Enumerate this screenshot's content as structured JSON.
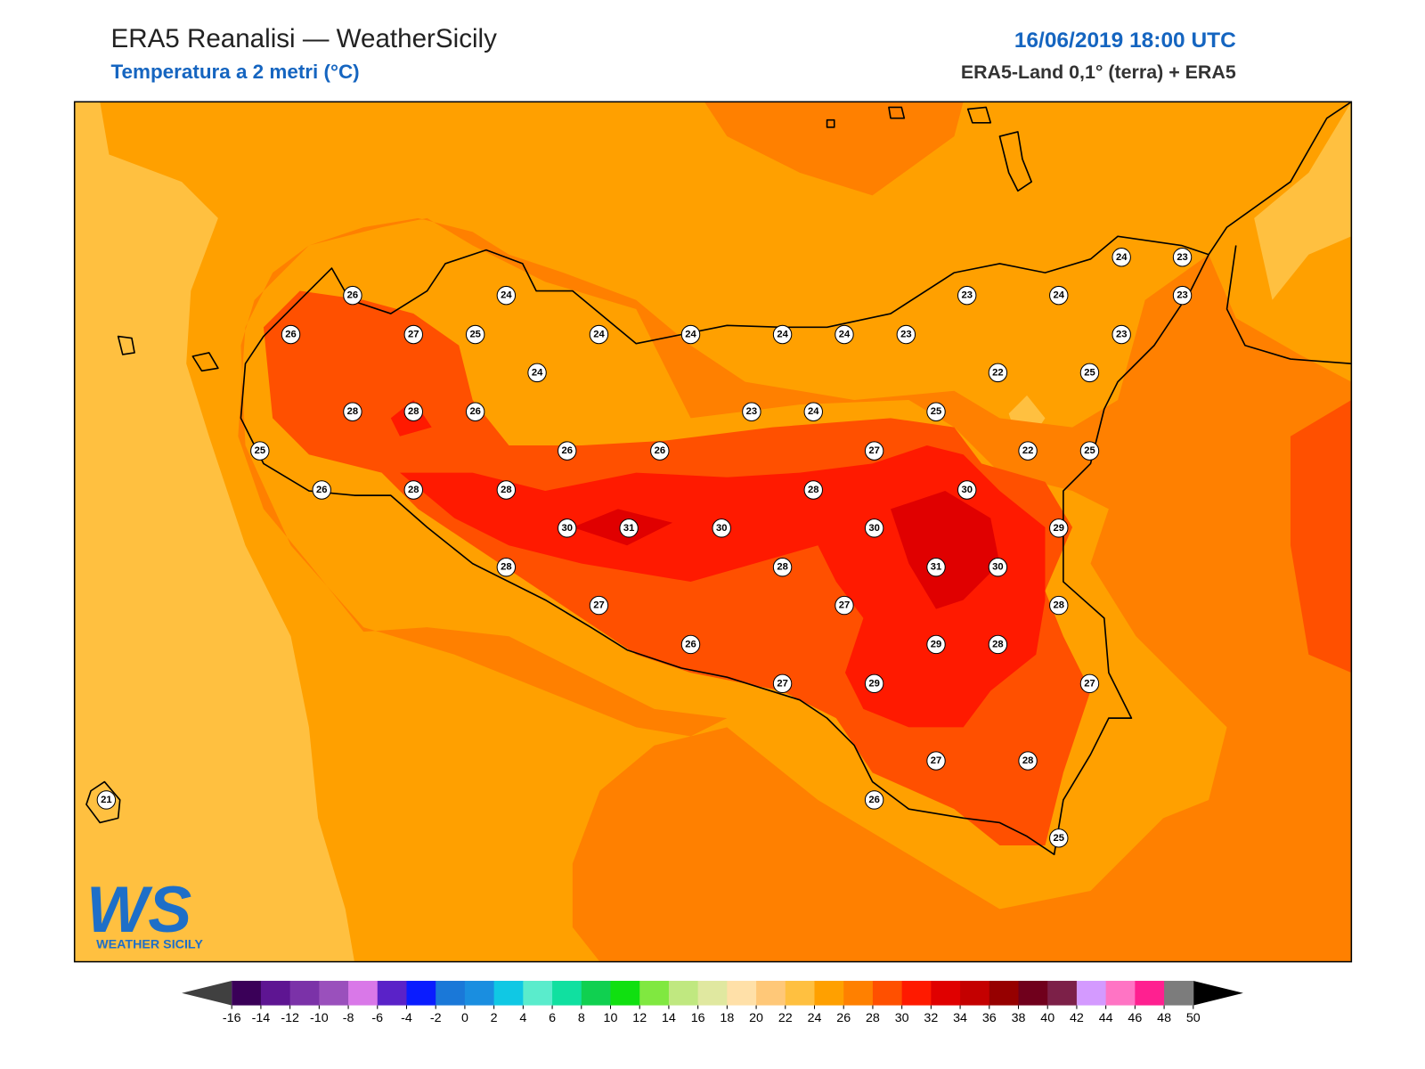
{
  "header": {
    "title": "ERA5 Reanalisi — WeatherSicily",
    "subtitle": "Temperatura a 2 metri (°C)",
    "datetime": "16/06/2019 18:00 UTC",
    "source": "ERA5-Land 0,1° (terra) + ERA5"
  },
  "map": {
    "stations": [
      26,
      24,
      26,
      27,
      25,
      24,
      24,
      24,
      24,
      23,
      24,
      28,
      28,
      26,
      23,
      24,
      25,
      25,
      26,
      26,
      27,
      26,
      28,
      28,
      28,
      30,
      30,
      31,
      30,
      30,
      29,
      28,
      28,
      31,
      30,
      27,
      27,
      28,
      26,
      29,
      28,
      27,
      29,
      27,
      27,
      28,
      26,
      25,
      21,
      24,
      23,
      23,
      24,
      23,
      23,
      22,
      25,
      22,
      25
    ]
  },
  "colorbar": {
    "ticks": [
      -16,
      -14,
      -12,
      -10,
      -8,
      -6,
      -4,
      -2,
      0,
      2,
      4,
      6,
      8,
      10,
      12,
      14,
      16,
      18,
      20,
      22,
      24,
      26,
      28,
      30,
      32,
      34,
      36,
      38,
      40,
      42,
      44,
      46,
      48,
      50
    ],
    "colors": [
      "#3a0058",
      "#5e1592",
      "#7b32a8",
      "#9a50bc",
      "#d978e8",
      "#5a22c8",
      "#0a1cff",
      "#1a78d8",
      "#1a8ee0",
      "#10c8e4",
      "#5aeccc",
      "#10e0a0",
      "#10d050",
      "#10e010",
      "#80e840",
      "#c0e880",
      "#e0e8a0",
      "#ffe0a8",
      "#ffc878",
      "#ffc040",
      "#ffa000",
      "#ff8000",
      "#ff5000",
      "#ff1a00",
      "#e00000",
      "#c40000",
      "#960000",
      "#70001c",
      "#7c2048",
      "#d49aff",
      "#ff74c4",
      "#ff2090",
      "#7c7c7c",
      "#383838"
    ],
    "under_color": "#404040",
    "over_color": "#000000"
  },
  "logo": {
    "mark": "WS",
    "name": "WEATHER SICILY"
  }
}
